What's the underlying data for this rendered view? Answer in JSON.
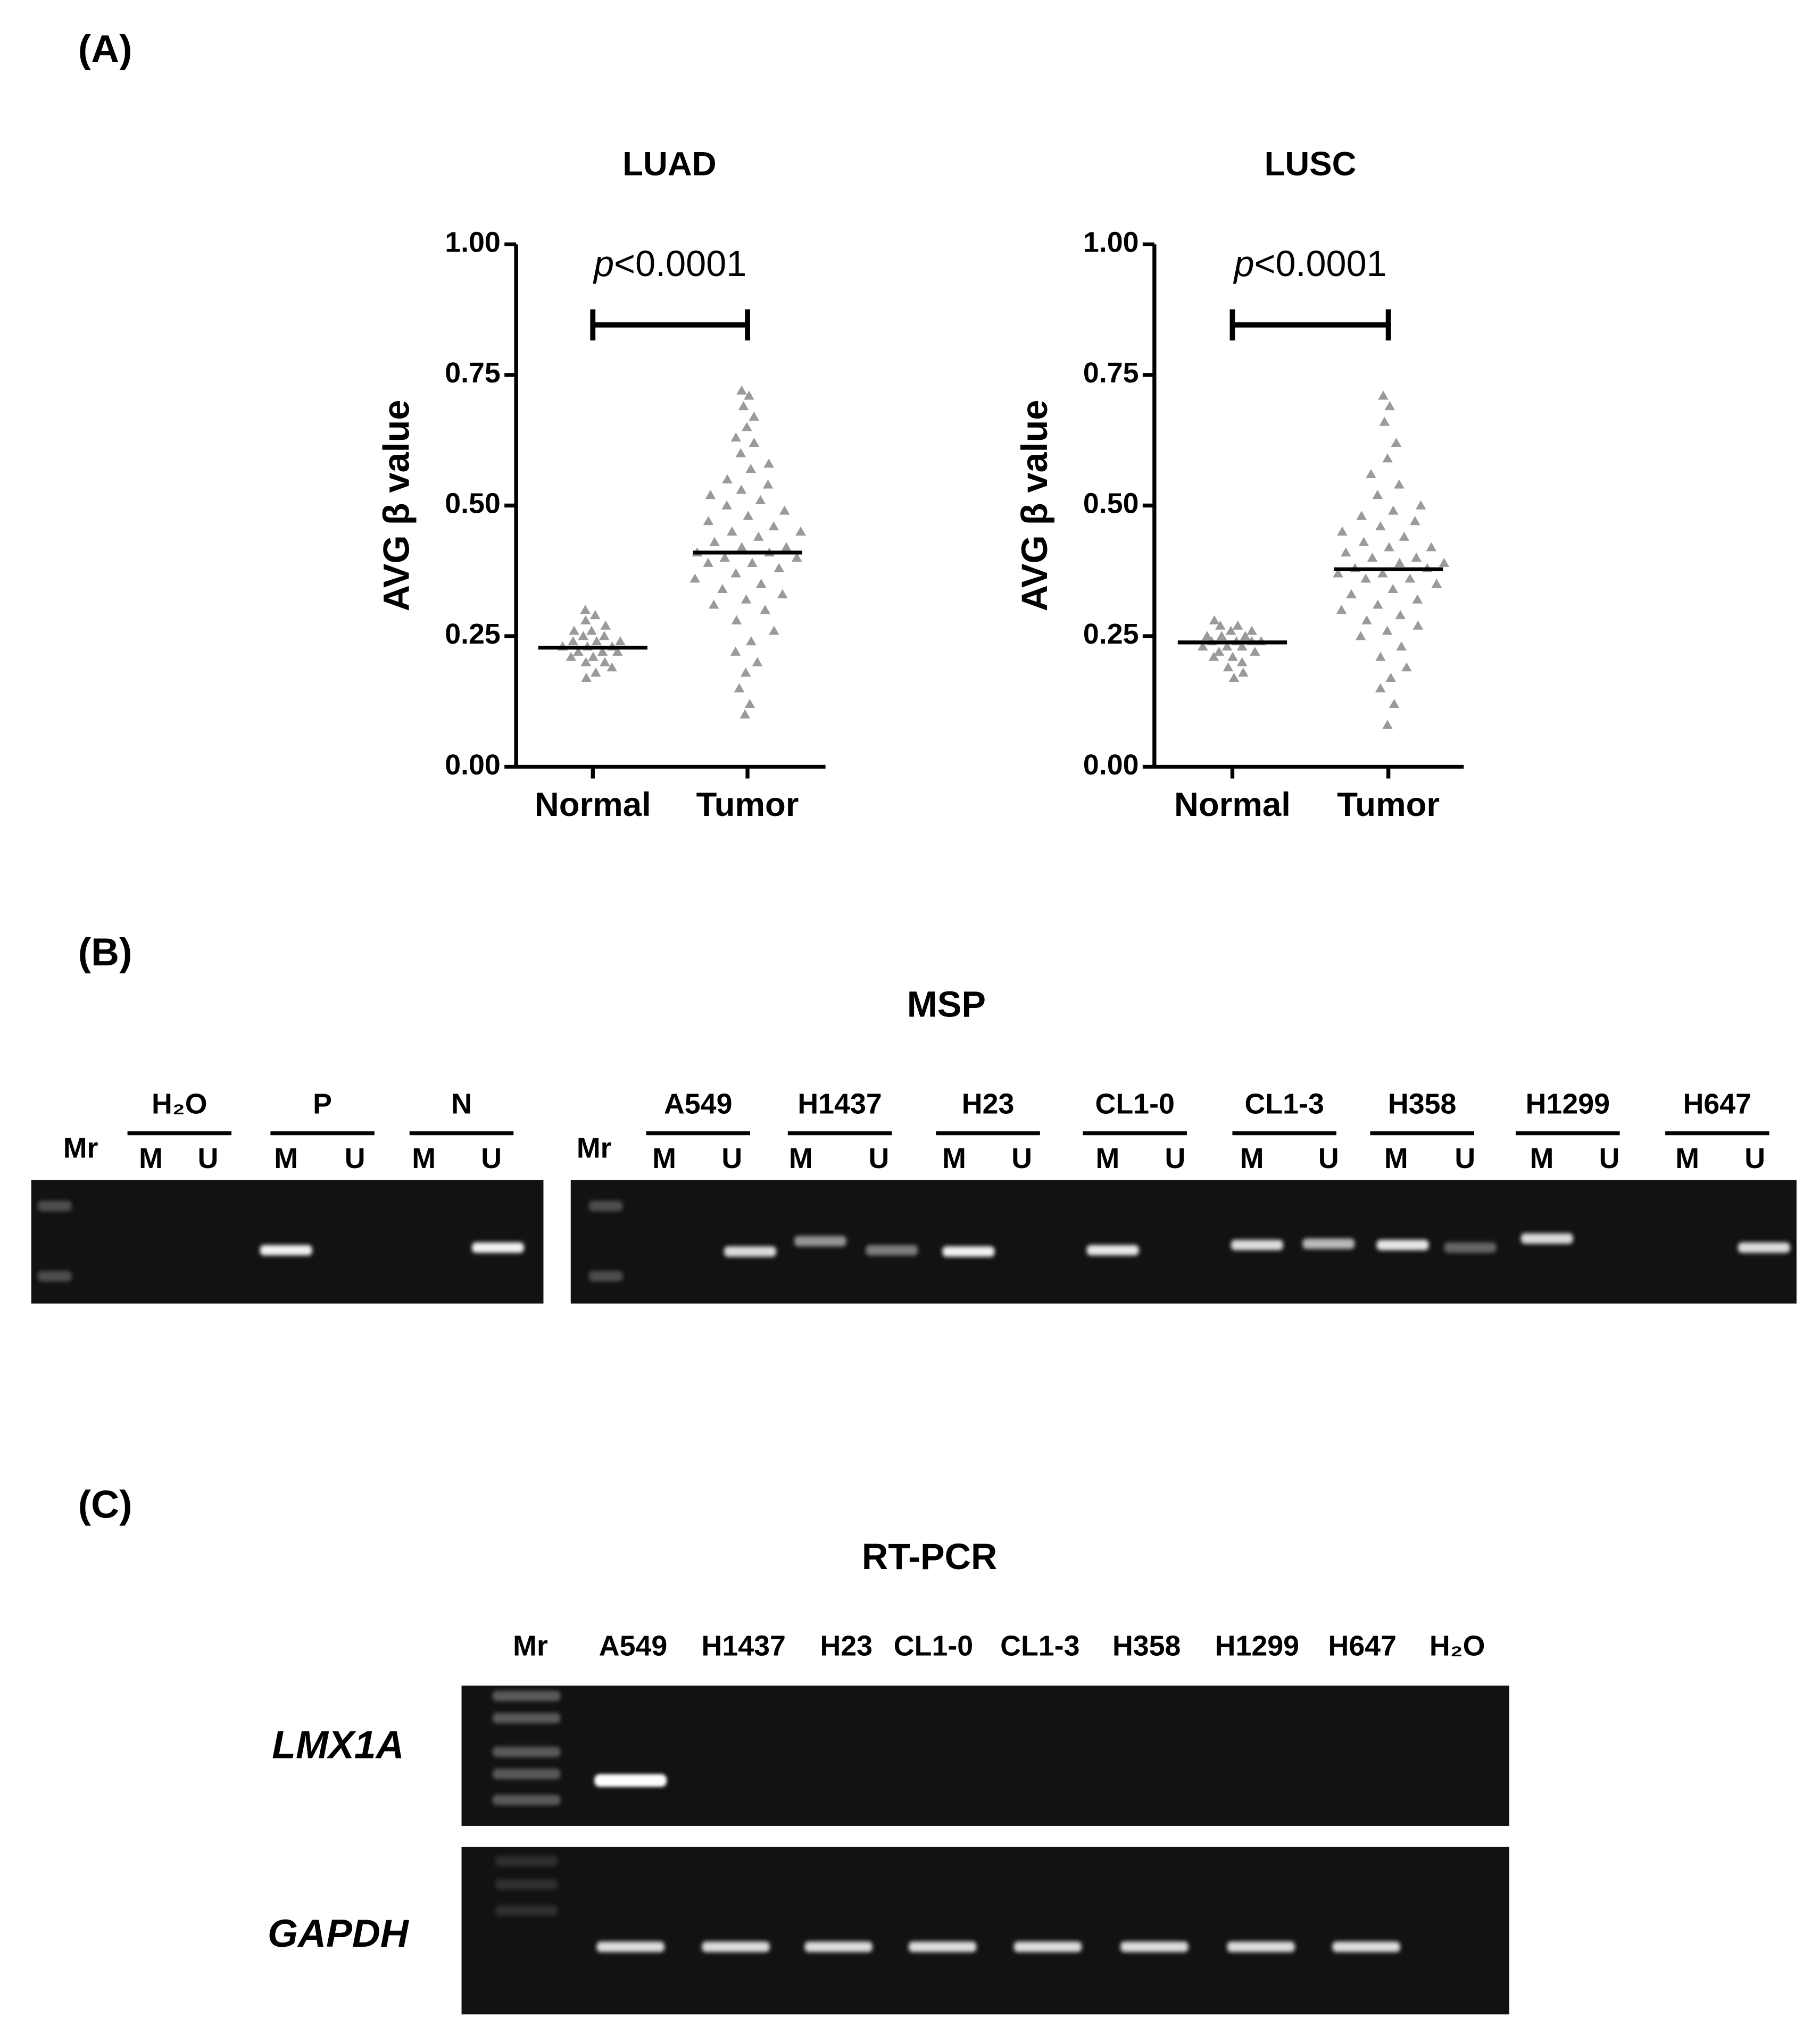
{
  "panel_labels": [
    "(A)",
    "(B)",
    "(C)"
  ],
  "chart_data": [
    {
      "type": "dot",
      "title": "LUAD",
      "ylabel": "AVG β value",
      "annotation": {
        "italic": "p",
        "text": "<0.0001"
      },
      "categories": [
        "Normal",
        "Tumor"
      ],
      "ylim": [
        0,
        1
      ],
      "yticks": [
        {
          "value": 0,
          "label": "0.00"
        },
        {
          "value": 0.25,
          "label": "0.25"
        },
        {
          "value": 0.5,
          "label": "0.50"
        },
        {
          "value": 0.75,
          "label": "0.75"
        },
        {
          "value": 1,
          "label": "1.00"
        }
      ],
      "color": "#9a9a9a",
      "groups": [
        {
          "values": [
            0.3,
            0.29,
            0.28,
            0.27,
            0.26,
            0.26,
            0.25,
            0.25,
            0.24,
            0.24,
            0.24,
            0.23,
            0.23,
            0.23,
            0.22,
            0.22,
            0.22,
            0.21,
            0.21,
            0.2,
            0.2,
            0.19,
            0.18,
            0.17
          ],
          "mean": 0.228
        },
        {
          "values": [
            0.72,
            0.71,
            0.69,
            0.67,
            0.65,
            0.63,
            0.62,
            0.6,
            0.58,
            0.57,
            0.55,
            0.54,
            0.53,
            0.52,
            0.51,
            0.5,
            0.49,
            0.48,
            0.47,
            0.46,
            0.45,
            0.45,
            0.44,
            0.43,
            0.42,
            0.42,
            0.41,
            0.41,
            0.4,
            0.4,
            0.39,
            0.39,
            0.38,
            0.37,
            0.36,
            0.35,
            0.34,
            0.33,
            0.32,
            0.31,
            0.3,
            0.28,
            0.26,
            0.24,
            0.22,
            0.2,
            0.18,
            0.15,
            0.12,
            0.1
          ],
          "mean": 0.41
        }
      ]
    },
    {
      "type": "dot",
      "title": "LUSC",
      "ylabel": "AVG β value",
      "annotation": {
        "italic": "p",
        "text": "<0.0001"
      },
      "categories": [
        "Normal",
        "Tumor"
      ],
      "ylim": [
        0,
        1
      ],
      "yticks": [
        {
          "value": 0,
          "label": "0.00"
        },
        {
          "value": 0.25,
          "label": "0.25"
        },
        {
          "value": 0.5,
          "label": "0.50"
        },
        {
          "value": 0.75,
          "label": "0.75"
        },
        {
          "value": 1,
          "label": "1.00"
        }
      ],
      "color": "#9a9a9a",
      "groups": [
        {
          "values": [
            0.28,
            0.27,
            0.27,
            0.26,
            0.26,
            0.25,
            0.25,
            0.25,
            0.24,
            0.24,
            0.24,
            0.24,
            0.23,
            0.23,
            0.23,
            0.22,
            0.22,
            0.21,
            0.21,
            0.2,
            0.19,
            0.18,
            0.17
          ],
          "mean": 0.238
        },
        {
          "values": [
            0.71,
            0.69,
            0.66,
            0.62,
            0.59,
            0.56,
            0.54,
            0.52,
            0.5,
            0.49,
            0.48,
            0.47,
            0.46,
            0.45,
            0.44,
            0.43,
            0.42,
            0.42,
            0.41,
            0.4,
            0.4,
            0.39,
            0.39,
            0.38,
            0.38,
            0.37,
            0.37,
            0.36,
            0.36,
            0.35,
            0.34,
            0.33,
            0.32,
            0.31,
            0.3,
            0.29,
            0.28,
            0.27,
            0.26,
            0.25,
            0.23,
            0.21,
            0.19,
            0.17,
            0.15,
            0.12,
            0.08
          ],
          "mean": 0.378
        }
      ]
    }
  ],
  "msp": {
    "title": "MSP",
    "gels": [
      {
        "ladder": "Mr",
        "samples": [
          {
            "name": "H₂O",
            "lanes": [
              "M",
              "U"
            ]
          },
          {
            "name": "P",
            "lanes": [
              "M",
              "U"
            ]
          },
          {
            "name": "N",
            "lanes": [
              "M",
              "U"
            ]
          }
        ]
      },
      {
        "ladder": "Mr",
        "samples": [
          {
            "name": "A549",
            "lanes": [
              "M",
              "U"
            ]
          },
          {
            "name": "H1437",
            "lanes": [
              "M",
              "U"
            ]
          },
          {
            "name": "H23",
            "lanes": [
              "M",
              "U"
            ]
          },
          {
            "name": "CL1-0",
            "lanes": [
              "M",
              "U"
            ]
          },
          {
            "name": "CL1-3",
            "lanes": [
              "M",
              "U"
            ]
          },
          {
            "name": "H358",
            "lanes": [
              "M",
              "U"
            ]
          },
          {
            "name": "H1299",
            "lanes": [
              "M",
              "U"
            ]
          },
          {
            "name": "H647",
            "lanes": [
              "M",
              "U"
            ]
          }
        ]
      }
    ]
  },
  "rt_pcr": {
    "title": "RT-PCR",
    "lanes": [
      "Mr",
      "A549",
      "H1437",
      "H23",
      "CL1-0",
      "CL1-3",
      "H358",
      "H1299",
      "H647",
      "H₂O"
    ],
    "rows": [
      "LMX1A",
      "GAPDH"
    ]
  }
}
